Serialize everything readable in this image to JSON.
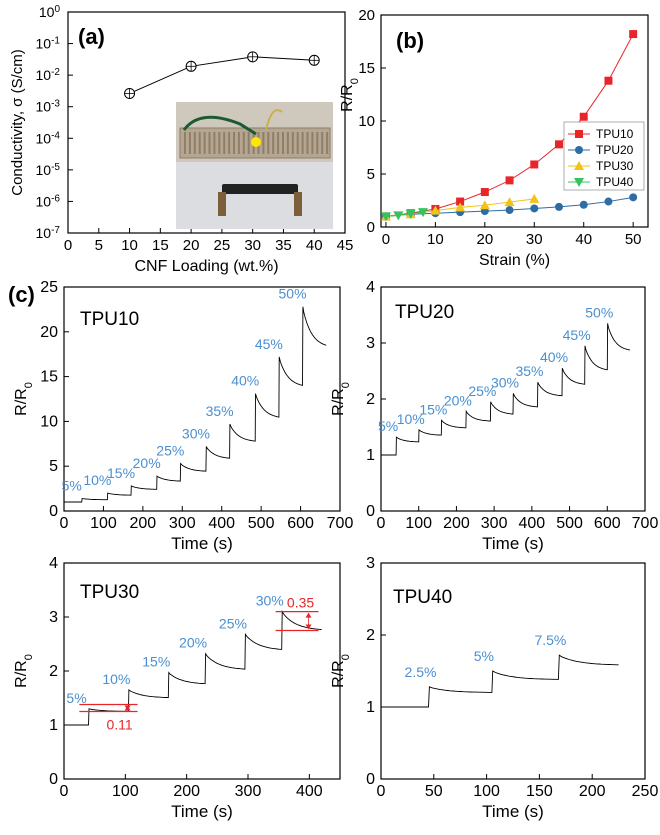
{
  "chart_data": [
    {
      "panel": "(a)",
      "type": "scatter",
      "xlabel": "CNF Loading (wt.%)",
      "ylabel": "Conductivity, σ (S/cm)",
      "xlim": [
        0,
        45
      ],
      "ylim_log10": [
        -7,
        0
      ],
      "xticks": [
        "0",
        "5",
        "10",
        "15",
        "20",
        "25",
        "30",
        "35",
        "40",
        "45"
      ],
      "yticks": [
        {
          "base": "10",
          "exp": "0"
        },
        {
          "base": "10",
          "exp": "-1"
        },
        {
          "base": "10",
          "exp": "-2"
        },
        {
          "base": "10",
          "exp": "-3"
        },
        {
          "base": "10",
          "exp": "-4"
        },
        {
          "base": "10",
          "exp": "-5"
        },
        {
          "base": "10",
          "exp": "-6"
        },
        {
          "base": "10",
          "exp": "-7"
        }
      ],
      "x": [
        10,
        20,
        30,
        40
      ],
      "y_log10": [
        -2.58,
        -1.72,
        -1.42,
        -1.53
      ],
      "inset": "photo of strain sensor sample connected to LED circuit on breadboard"
    },
    {
      "panel": "(b)",
      "type": "line",
      "xlabel": "Strain (%)",
      "ylabel": "R/R",
      "ylabel_sub": "0",
      "xlim": [
        -1,
        53
      ],
      "ylim": [
        0,
        20
      ],
      "xticks": [
        "0",
        "10",
        "20",
        "30",
        "40",
        "50"
      ],
      "yticks": [
        "0",
        "5",
        "10",
        "15",
        "20"
      ],
      "series": [
        {
          "name": "TPU10",
          "color": "#e8262a",
          "marker": "square",
          "x": [
            0,
            5,
            10,
            15,
            20,
            25,
            30,
            35,
            40,
            45,
            50
          ],
          "y": [
            1.0,
            1.3,
            1.7,
            2.4,
            3.3,
            4.4,
            5.9,
            7.8,
            10.4,
            13.8,
            18.2
          ]
        },
        {
          "name": "TPU20",
          "color": "#2e6da4",
          "marker": "circle",
          "x": [
            0,
            5,
            10,
            15,
            20,
            25,
            30,
            35,
            40,
            45,
            50
          ],
          "y": [
            1.0,
            1.2,
            1.3,
            1.4,
            1.5,
            1.6,
            1.75,
            1.9,
            2.1,
            2.4,
            2.8
          ]
        },
        {
          "name": "TPU30",
          "color": "#f2c318",
          "marker": "triangle-up",
          "x": [
            0,
            5,
            10,
            15,
            20,
            25,
            30
          ],
          "y": [
            1.0,
            1.2,
            1.55,
            1.85,
            2.05,
            2.35,
            2.65
          ]
        },
        {
          "name": "TPU40",
          "color": "#35c45c",
          "marker": "triangle-down",
          "x": [
            0,
            2.5,
            5,
            7.5
          ],
          "y": [
            1.0,
            1.1,
            1.25,
            1.4
          ]
        }
      ]
    },
    {
      "panel": "(c)",
      "label": "TPU10",
      "type": "line",
      "xlabel": "Time (s)",
      "ylabel": "R/R",
      "ylabel_sub": "0",
      "xlim": [
        0,
        700
      ],
      "ylim": [
        0,
        25
      ],
      "xticks": [
        "0",
        "100",
        "200",
        "300",
        "400",
        "500",
        "600",
        "700"
      ],
      "yticks": [
        "0",
        "5",
        "10",
        "15",
        "20",
        "25"
      ],
      "baseline": 1.0,
      "steps": [
        {
          "t": 45,
          "peak": 1.4,
          "settle": 1.25,
          "label": "5%"
        },
        {
          "t": 110,
          "peak": 2.0,
          "settle": 1.75,
          "label": "10%"
        },
        {
          "t": 170,
          "peak": 2.8,
          "settle": 2.4,
          "label": "15%"
        },
        {
          "t": 235,
          "peak": 3.9,
          "settle": 3.3,
          "label": "20%"
        },
        {
          "t": 295,
          "peak": 5.3,
          "settle": 4.4,
          "label": "25%"
        },
        {
          "t": 360,
          "peak": 7.2,
          "settle": 5.8,
          "label": "30%"
        },
        {
          "t": 420,
          "peak": 9.7,
          "settle": 7.7,
          "label": "35%"
        },
        {
          "t": 485,
          "peak": 13.1,
          "settle": 10.3,
          "label": "40%"
        },
        {
          "t": 545,
          "peak": 17.2,
          "settle": 13.8,
          "label": "45%"
        },
        {
          "t": 605,
          "peak": 22.8,
          "settle": 18.2,
          "label": "50%"
        }
      ],
      "end_t": 665
    },
    {
      "label": "TPU20",
      "type": "line",
      "xlabel": "Time (s)",
      "ylabel": "R/R",
      "ylabel_sub": "0",
      "xlim": [
        0,
        700
      ],
      "ylim": [
        0,
        4
      ],
      "xticks": [
        "0",
        "100",
        "200",
        "300",
        "400",
        "500",
        "600",
        "700"
      ],
      "yticks": [
        "0",
        "1",
        "2",
        "3",
        "4"
      ],
      "baseline": 1.0,
      "steps": [
        {
          "t": 40,
          "peak": 1.32,
          "settle": 1.23,
          "label": "5%"
        },
        {
          "t": 100,
          "peak": 1.45,
          "settle": 1.35,
          "label": "10%"
        },
        {
          "t": 160,
          "peak": 1.62,
          "settle": 1.48,
          "label": "15%"
        },
        {
          "t": 225,
          "peak": 1.78,
          "settle": 1.6,
          "label": "20%"
        },
        {
          "t": 290,
          "peak": 1.95,
          "settle": 1.72,
          "label": "25%"
        },
        {
          "t": 350,
          "peak": 2.1,
          "settle": 1.85,
          "label": "30%"
        },
        {
          "t": 415,
          "peak": 2.3,
          "settle": 2.05,
          "label": "35%"
        },
        {
          "t": 480,
          "peak": 2.55,
          "settle": 2.25,
          "label": "40%"
        },
        {
          "t": 540,
          "peak": 2.95,
          "settle": 2.5,
          "label": "45%"
        },
        {
          "t": 600,
          "peak": 3.35,
          "settle": 2.85,
          "label": "50%"
        }
      ],
      "end_t": 660
    },
    {
      "label": "TPU30",
      "type": "line",
      "xlabel": "Time (s)",
      "ylabel": "R/R",
      "ylabel_sub": "0",
      "xlim": [
        0,
        450
      ],
      "ylim": [
        0,
        4
      ],
      "xticks": [
        "0",
        "100",
        "200",
        "300",
        "400"
      ],
      "yticks": [
        "0",
        "1",
        "2",
        "3",
        "4"
      ],
      "baseline": 1.0,
      "steps": [
        {
          "t": 40,
          "peak": 1.3,
          "settle": 1.25,
          "label": "5%"
        },
        {
          "t": 105,
          "peak": 1.65,
          "settle": 1.5,
          "label": "10%"
        },
        {
          "t": 170,
          "peak": 1.97,
          "settle": 1.75,
          "label": "15%"
        },
        {
          "t": 230,
          "peak": 2.32,
          "settle": 2.02,
          "label": "20%"
        },
        {
          "t": 295,
          "peak": 2.68,
          "settle": 2.38,
          "label": "25%"
        },
        {
          "t": 355,
          "peak": 3.1,
          "settle": 2.75,
          "label": "30%"
        }
      ],
      "end_t": 420,
      "annotations": [
        {
          "label": "0.11",
          "x0": 25,
          "x1": 120,
          "y_high": 1.38,
          "y_low": 1.25,
          "color": "#e8262a"
        },
        {
          "label": "0.35",
          "x0": 345,
          "x1": 415,
          "y_high": 3.1,
          "y_low": 2.75,
          "color": "#e8262a"
        }
      ]
    },
    {
      "label": "TPU40",
      "type": "line",
      "xlabel": "Time (s)",
      "ylabel": "R/R",
      "ylabel_sub": "0",
      "xlim": [
        0,
        250
      ],
      "ylim": [
        0,
        3
      ],
      "xticks": [
        "0",
        "50",
        "100",
        "150",
        "200",
        "250"
      ],
      "yticks": [
        "0",
        "1",
        "2",
        "3"
      ],
      "baseline": 1.0,
      "steps": [
        {
          "t": 45,
          "peak": 1.28,
          "settle": 1.2,
          "label": "2.5%"
        },
        {
          "t": 105,
          "peak": 1.5,
          "settle": 1.38,
          "label": "5%"
        },
        {
          "t": 168,
          "peak": 1.72,
          "settle": 1.58,
          "label": "7.5%"
        }
      ],
      "end_t": 225
    }
  ],
  "colors": {
    "axis": "#000000",
    "trace": "#000000",
    "strain_label": "#4a8fd0",
    "annotation": "#e8262a"
  }
}
